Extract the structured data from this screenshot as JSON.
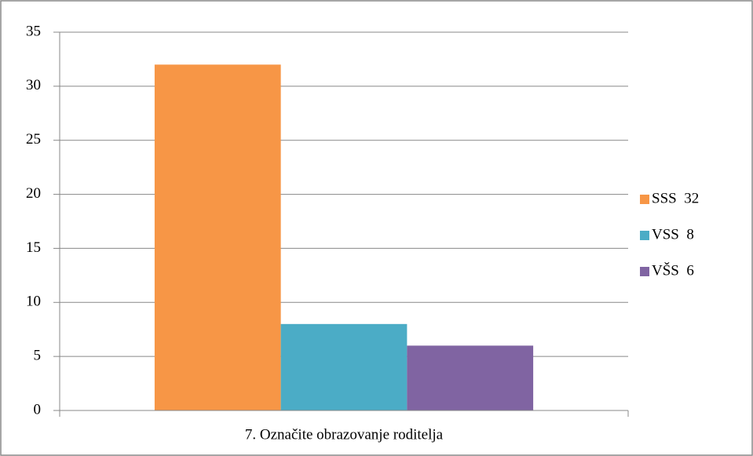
{
  "chart_data": {
    "type": "bar",
    "categories": [
      "7. Označite obrazovanje roditelja"
    ],
    "series": [
      {
        "name": "SSS  32",
        "color": "#f79646",
        "values": [
          32
        ]
      },
      {
        "name": "VSS  8",
        "color": "#4bacc6",
        "values": [
          8
        ]
      },
      {
        "name": "VŠS  6",
        "color": "#8064a2",
        "values": [
          6
        ]
      }
    ],
    "ylim": [
      0,
      35
    ],
    "yticks": [
      0,
      5,
      10,
      15,
      20,
      25,
      30,
      35
    ],
    "grid": true,
    "legend": "right"
  }
}
